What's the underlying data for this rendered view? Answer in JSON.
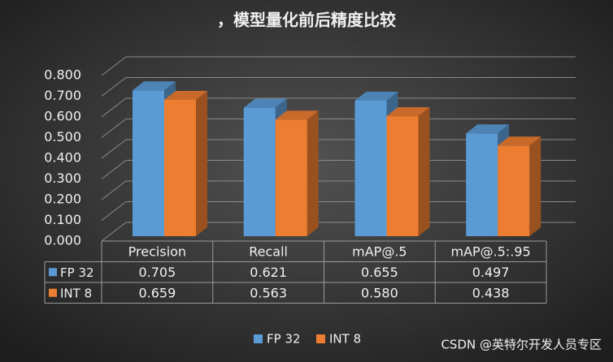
{
  "chart_data": {
    "type": "bar3d",
    "title": "，模型量化前后精度比较",
    "categories": [
      "Precision",
      "Recall",
      "mAP@.5",
      "mAP@.5:.95"
    ],
    "series": [
      {
        "name": "FP 32",
        "color": "#5b9bd5",
        "values": [
          0.705,
          0.621,
          0.655,
          0.497
        ],
        "value_labels": [
          "0.705",
          "0.621",
          "0.655",
          "0.497"
        ]
      },
      {
        "name": "INT 8",
        "color": "#ed7d31",
        "values": [
          0.659,
          0.563,
          0.58,
          0.438
        ],
        "value_labels": [
          "0.659",
          "0.563",
          "0.580",
          "0.438"
        ]
      }
    ],
    "ylim": [
      0,
      0.8
    ],
    "yticks": [
      {
        "value": 0,
        "label": "0.000"
      },
      {
        "value": 0.1,
        "label": "0.100"
      },
      {
        "value": 0.2,
        "label": "0.200"
      },
      {
        "value": 0.3,
        "label": "0.300"
      },
      {
        "value": 0.4,
        "label": "0.400"
      },
      {
        "value": 0.5,
        "label": "0.500"
      },
      {
        "value": 0.6,
        "label": "0.600"
      },
      {
        "value": 0.7,
        "label": "0.700"
      },
      {
        "value": 0.8,
        "label": "0.800"
      }
    ],
    "grid": true,
    "watermark": "CSDN @英特尔开发人员专区"
  }
}
